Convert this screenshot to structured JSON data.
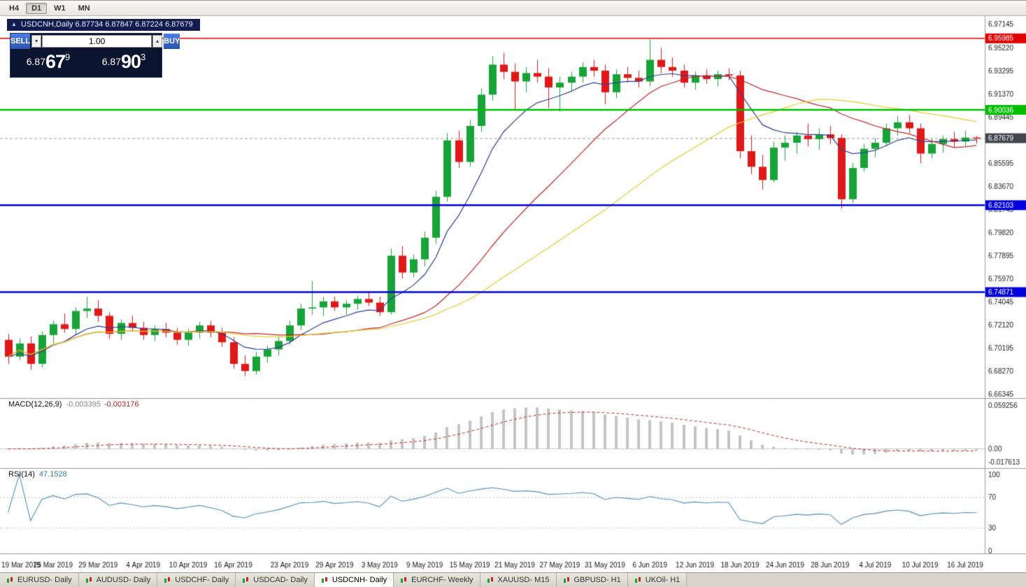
{
  "toolbar": {
    "timeframes": [
      {
        "label": "H4",
        "active": false
      },
      {
        "label": "D1",
        "active": true
      },
      {
        "label": "W1",
        "active": false
      },
      {
        "label": "MN",
        "active": false
      }
    ]
  },
  "chart_title": {
    "collapse_icon": "▲",
    "text": "USDCNH,Daily 6.87734 6.87847 6.87224 6.87679"
  },
  "trade_panel": {
    "sell_label": "SELL",
    "buy_label": "BUY",
    "volume": "1.00",
    "volume_down_icon": "▼",
    "volume_up_icon": "▲",
    "sell_price": {
      "base": "6.87",
      "pips": "67",
      "sup": "9"
    },
    "buy_price": {
      "base": "6.87",
      "pips": "90",
      "sup": "3"
    }
  },
  "indicators": {
    "macd_name": "MACD(12,26,9)",
    "macd_value": "-0.003395",
    "macd_signal_value": "-0.003176",
    "rsi_name": "RSI(14)",
    "rsi_value": "47.1528"
  },
  "tab_bar": {
    "tabs": [
      {
        "label": "EURUSD- Daily",
        "active": false
      },
      {
        "label": "AUDUSD- Daily",
        "active": false
      },
      {
        "label": "USDCHF- Daily",
        "active": false
      },
      {
        "label": "USDCAD- Daily",
        "active": false
      },
      {
        "label": "USDCNH- Daily",
        "active": true
      },
      {
        "label": "EURCHF- Weekly",
        "active": false
      },
      {
        "label": "XAUUSD- M15",
        "active": false
      },
      {
        "label": "GBPUSD- H1",
        "active": false
      },
      {
        "label": "UKOil- H1",
        "active": false
      }
    ]
  },
  "chart_data": {
    "type": "candlestick",
    "symbol": "USDCNH",
    "timeframe": "Daily",
    "ohlc_display": {
      "open": "6.87734",
      "high": "6.87847",
      "low": "6.87224",
      "close": "6.87679"
    },
    "ylim": [
      6.6611,
      6.9784
    ],
    "y_ticks": [
      6.97145,
      6.9522,
      6.93295,
      6.9137,
      6.89445,
      6.8752,
      6.85595,
      6.8367,
      6.81745,
      6.7982,
      6.77895,
      6.7597,
      6.74045,
      6.7212,
      6.70195,
      6.6827,
      6.66345
    ],
    "price_lines": [
      {
        "price": 6.95985,
        "label": "6.95985",
        "color": "#e00000",
        "width": 1.5
      },
      {
        "price": 6.90036,
        "label": "6.90036",
        "color": "#00bf00",
        "width": 2.5
      },
      {
        "price": 6.82103,
        "label": "6.82103",
        "color": "#0000dd",
        "width": 2.5
      },
      {
        "price": 6.74871,
        "label": "6.74871",
        "color": "#0000dd",
        "width": 2.5
      }
    ],
    "current_price": {
      "price": 6.87679,
      "label": "6.87679",
      "color": "#44444e"
    },
    "colors": {
      "up": "#17a337",
      "down": "#e11818",
      "ma_fast": "#2e3f93",
      "ma_mid": "#c22727",
      "ma_slow": "#e3cb2c",
      "rsi": "#4f8fbf"
    },
    "ma": {
      "fast": {
        "period": 8,
        "type": "ema"
      },
      "mid": {
        "period": 20,
        "type": "sma"
      },
      "slow": {
        "period": 34,
        "type": "sma"
      }
    },
    "candles": [
      [
        6.709,
        6.714,
        6.689,
        6.695
      ],
      [
        6.695,
        6.71,
        6.692,
        6.706
      ],
      [
        6.706,
        6.712,
        6.684,
        6.689
      ],
      [
        6.689,
        6.716,
        6.686,
        6.713
      ],
      [
        6.713,
        6.725,
        6.706,
        6.722
      ],
      [
        6.722,
        6.731,
        6.715,
        6.718
      ],
      [
        6.718,
        6.736,
        6.713,
        6.733
      ],
      [
        6.733,
        6.745,
        6.727,
        6.735
      ],
      [
        6.735,
        6.742,
        6.724,
        6.729
      ],
      [
        6.729,
        6.732,
        6.71,
        6.714
      ],
      [
        6.714,
        6.726,
        6.709,
        6.723
      ],
      [
        6.723,
        6.729,
        6.716,
        6.719
      ],
      [
        6.719,
        6.724,
        6.709,
        6.713
      ],
      [
        6.713,
        6.721,
        6.708,
        6.718
      ],
      [
        6.718,
        6.723,
        6.711,
        6.715
      ],
      [
        6.715,
        6.719,
        6.705,
        6.709
      ],
      [
        6.709,
        6.718,
        6.704,
        6.715
      ],
      [
        6.715,
        6.724,
        6.71,
        6.721
      ],
      [
        6.721,
        6.725,
        6.711,
        6.715
      ],
      [
        6.715,
        6.719,
        6.703,
        6.707
      ],
      [
        6.707,
        6.711,
        6.685,
        6.689
      ],
      [
        6.689,
        6.696,
        6.679,
        6.683
      ],
      [
        6.683,
        6.699,
        6.68,
        6.695
      ],
      [
        6.695,
        6.704,
        6.69,
        6.701
      ],
      [
        6.701,
        6.711,
        6.696,
        6.708
      ],
      [
        6.708,
        6.725,
        6.705,
        6.721
      ],
      [
        6.721,
        6.739,
        6.717,
        6.735
      ],
      [
        6.735,
        6.758,
        6.73,
        6.736
      ],
      [
        6.736,
        6.745,
        6.729,
        6.741
      ],
      [
        6.741,
        6.745,
        6.733,
        6.736
      ],
      [
        6.736,
        6.742,
        6.73,
        6.739
      ],
      [
        6.739,
        6.746,
        6.734,
        6.743
      ],
      [
        6.743,
        6.749,
        6.737,
        6.74
      ],
      [
        6.74,
        6.745,
        6.729,
        6.732
      ],
      [
        6.732,
        6.785,
        6.73,
        6.779
      ],
      [
        6.779,
        6.787,
        6.76,
        6.765
      ],
      [
        6.765,
        6.78,
        6.761,
        6.776
      ],
      [
        6.776,
        6.799,
        6.77,
        6.794
      ],
      [
        6.794,
        6.833,
        6.789,
        6.828
      ],
      [
        6.828,
        6.881,
        6.824,
        6.875
      ],
      [
        6.875,
        6.883,
        6.852,
        6.857
      ],
      [
        6.857,
        6.892,
        6.853,
        6.887
      ],
      [
        6.887,
        6.918,
        6.882,
        6.913
      ],
      [
        6.913,
        6.945,
        6.908,
        6.938
      ],
      [
        6.938,
        6.948,
        6.926,
        6.932
      ],
      [
        6.932,
        6.939,
        6.9,
        6.924
      ],
      [
        6.924,
        6.936,
        6.915,
        6.931
      ],
      [
        6.931,
        6.942,
        6.923,
        6.928
      ],
      [
        6.928,
        6.935,
        6.902,
        6.919
      ],
      [
        6.919,
        6.928,
        6.899,
        6.923
      ],
      [
        6.923,
        6.932,
        6.916,
        6.928
      ],
      [
        6.928,
        6.94,
        6.923,
        6.936
      ],
      [
        6.936,
        6.942,
        6.928,
        6.933
      ],
      [
        6.933,
        6.938,
        6.905,
        6.915
      ],
      [
        6.915,
        6.934,
        6.91,
        6.93
      ],
      [
        6.93,
        6.936,
        6.923,
        6.927
      ],
      [
        6.927,
        6.933,
        6.919,
        6.924
      ],
      [
        6.924,
        6.959,
        6.92,
        6.942
      ],
      [
        6.942,
        6.952,
        6.931,
        6.936
      ],
      [
        6.936,
        6.944,
        6.928,
        6.933
      ],
      [
        6.933,
        6.938,
        6.919,
        6.923
      ],
      [
        6.923,
        6.932,
        6.917,
        6.929
      ],
      [
        6.929,
        6.934,
        6.922,
        6.926
      ],
      [
        6.926,
        6.933,
        6.92,
        6.93
      ],
      [
        6.93,
        6.935,
        6.925,
        6.929
      ],
      [
        6.929,
        6.933,
        6.86,
        6.866
      ],
      [
        6.866,
        6.879,
        6.847,
        6.853
      ],
      [
        6.853,
        6.863,
        6.834,
        6.842
      ],
      [
        6.842,
        6.874,
        6.84,
        6.869
      ],
      [
        6.869,
        6.879,
        6.858,
        6.873
      ],
      [
        6.873,
        6.882,
        6.864,
        6.879
      ],
      [
        6.879,
        6.889,
        6.87,
        6.876
      ],
      [
        6.876,
        6.885,
        6.867,
        6.88
      ],
      [
        6.88,
        6.887,
        6.872,
        6.877
      ],
      [
        6.877,
        6.88,
        6.818,
        6.826
      ],
      [
        6.826,
        6.856,
        6.823,
        6.852
      ],
      [
        6.852,
        6.872,
        6.849,
        6.868
      ],
      [
        6.868,
        6.877,
        6.861,
        6.873
      ],
      [
        6.873,
        6.889,
        6.87,
        6.885
      ],
      [
        6.885,
        6.895,
        6.879,
        6.89
      ],
      [
        6.89,
        6.896,
        6.881,
        6.885
      ],
      [
        6.885,
        6.889,
        6.856,
        6.864
      ],
      [
        6.864,
        6.876,
        6.86,
        6.872
      ],
      [
        6.872,
        6.879,
        6.865,
        6.876
      ],
      [
        6.876,
        6.882,
        6.869,
        6.874
      ],
      [
        6.874,
        6.883,
        6.87,
        6.8773
      ],
      [
        6.87734,
        6.87847,
        6.87224,
        6.87679
      ]
    ],
    "x_labels": [
      {
        "i": 0,
        "t": "19 Mar 2019"
      },
      {
        "i": 4,
        "t": "25 Mar 2019"
      },
      {
        "i": 8,
        "t": "29 Mar 2019"
      },
      {
        "i": 12,
        "t": "4 Apr 2019"
      },
      {
        "i": 16,
        "t": "10 Apr 2019"
      },
      {
        "i": 20,
        "t": "16 Apr 2019"
      },
      {
        "i": 25,
        "t": "23 Apr 2019"
      },
      {
        "i": 29,
        "t": "29 Apr 2019"
      },
      {
        "i": 33,
        "t": "3 May 2019"
      },
      {
        "i": 37,
        "t": "9 May 2019"
      },
      {
        "i": 41,
        "t": "15 May 2019"
      },
      {
        "i": 45,
        "t": "21 May 2019"
      },
      {
        "i": 49,
        "t": "27 May 2019"
      },
      {
        "i": 53,
        "t": "31 May 2019"
      },
      {
        "i": 57,
        "t": "6 Jun 2019"
      },
      {
        "i": 61,
        "t": "12 Jun 2019"
      },
      {
        "i": 65,
        "t": "18 Jun 2019"
      },
      {
        "i": 69,
        "t": "24 Jun 2019"
      },
      {
        "i": 73,
        "t": "28 Jun 2019"
      },
      {
        "i": 77,
        "t": "4 Jul 2019"
      },
      {
        "i": 81,
        "t": "10 Jul 2019"
      },
      {
        "i": 85,
        "t": "16 Jul 2019"
      }
    ],
    "macd": {
      "fast": 12,
      "slow": 26,
      "signal": 9,
      "ylim": [
        -0.022,
        0.0625
      ],
      "ticks": [
        {
          "v": 0.059256,
          "t": "0.059256"
        },
        {
          "v": 0,
          "t": "0.00"
        },
        {
          "v": -0.017613,
          "t": "-0.017613"
        }
      ],
      "hist_color": "#c4c4c4",
      "signal_color": "#cc2222"
    },
    "rsi": {
      "period": 14,
      "ticks": [
        {
          "v": 100,
          "t": "100"
        },
        {
          "v": 70,
          "t": "70"
        },
        {
          "v": 30,
          "t": "30"
        },
        {
          "v": 0,
          "t": "0"
        }
      ],
      "levels": [
        70,
        30
      ]
    }
  }
}
